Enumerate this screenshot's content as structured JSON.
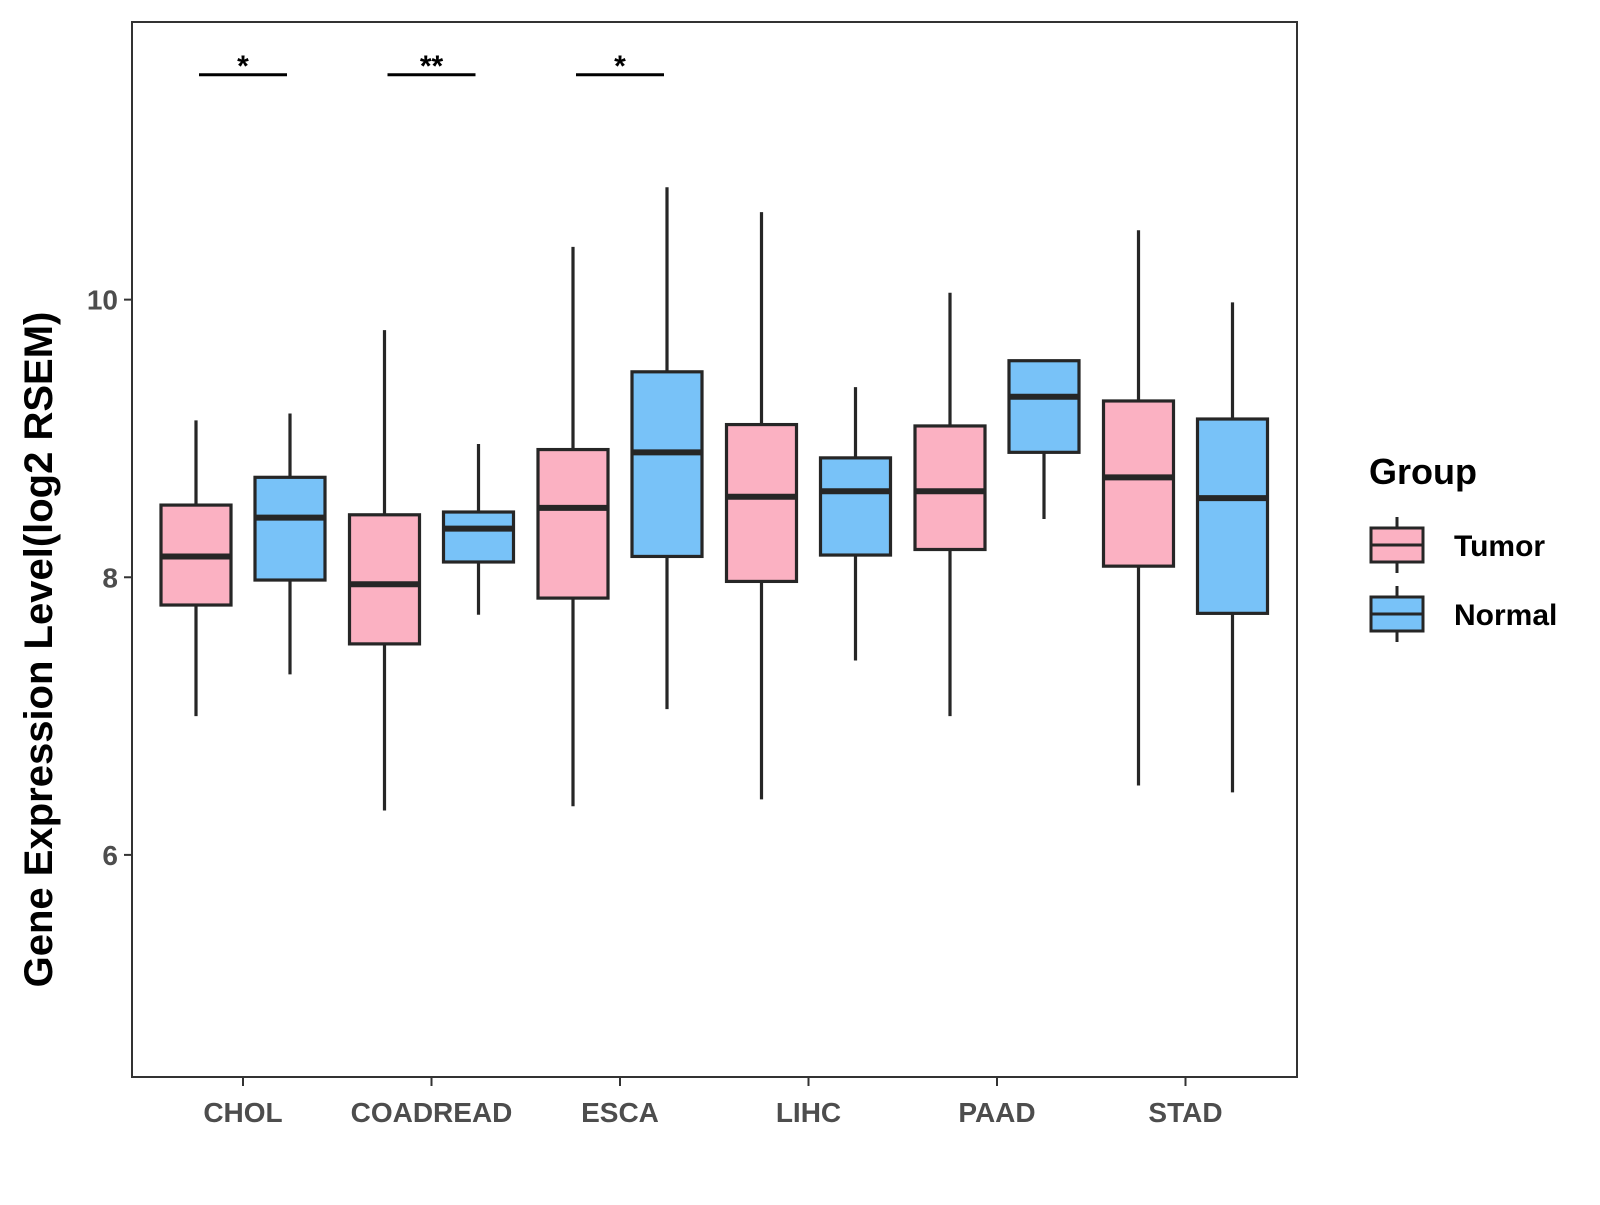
{
  "chart_data": {
    "type": "boxplot",
    "title": "",
    "xlabel": "",
    "ylabel": "Gene Expression Level(log2 RSEM)",
    "ylim": [
      4.4,
      12.0
    ],
    "y_ticks": [
      6,
      8,
      10
    ],
    "grid": false,
    "legend": {
      "title": "Group",
      "position": "right",
      "entries": [
        {
          "name": "Tumor",
          "color": "#FBB1C2"
        },
        {
          "name": "Normal",
          "color": "#78C2F8"
        }
      ]
    },
    "categories": [
      "CHOL",
      "COADREAD",
      "ESCA",
      "LIHC",
      "PAAD",
      "STAD"
    ],
    "series": [
      {
        "name": "Tumor",
        "color": "#FBB1C2",
        "boxes": [
          {
            "whisker_low": 7.0,
            "q1": 7.8,
            "median": 8.15,
            "q3": 8.52,
            "whisker_high": 9.13
          },
          {
            "whisker_low": 6.32,
            "q1": 7.52,
            "median": 7.95,
            "q3": 8.45,
            "whisker_high": 9.78
          },
          {
            "whisker_low": 6.35,
            "q1": 7.85,
            "median": 8.5,
            "q3": 8.92,
            "whisker_high": 10.38
          },
          {
            "whisker_low": 6.4,
            "q1": 7.97,
            "median": 8.58,
            "q3": 9.1,
            "whisker_high": 10.63
          },
          {
            "whisker_low": 7.0,
            "q1": 8.2,
            "median": 8.62,
            "q3": 9.09,
            "whisker_high": 10.05
          },
          {
            "whisker_low": 6.5,
            "q1": 8.08,
            "median": 8.72,
            "q3": 9.27,
            "whisker_high": 10.5
          }
        ]
      },
      {
        "name": "Normal",
        "color": "#78C2F8",
        "boxes": [
          {
            "whisker_low": 7.3,
            "q1": 7.98,
            "median": 8.43,
            "q3": 8.72,
            "whisker_high": 9.18
          },
          {
            "whisker_low": 7.73,
            "q1": 8.11,
            "median": 8.35,
            "q3": 8.47,
            "whisker_high": 8.96
          },
          {
            "whisker_low": 7.05,
            "q1": 8.15,
            "median": 8.9,
            "q3": 9.48,
            "whisker_high": 10.81
          },
          {
            "whisker_low": 7.4,
            "q1": 8.16,
            "median": 8.62,
            "q3": 8.86,
            "whisker_high": 9.37
          },
          {
            "whisker_low": 8.42,
            "q1": 8.9,
            "median": 9.3,
            "q3": 9.56,
            "whisker_high": 9.56
          },
          {
            "whisker_low": 6.45,
            "q1": 7.74,
            "median": 8.57,
            "q3": 9.14,
            "whisker_high": 9.98
          }
        ]
      }
    ],
    "significance": [
      {
        "category": "CHOL",
        "label": "*"
      },
      {
        "category": "COADREAD",
        "label": "**"
      },
      {
        "category": "ESCA",
        "label": "*"
      },
      {
        "category": "LIHC",
        "label": ""
      },
      {
        "category": "PAAD",
        "label": ""
      },
      {
        "category": "STAD",
        "label": ""
      }
    ],
    "significance_y": 11.62
  }
}
